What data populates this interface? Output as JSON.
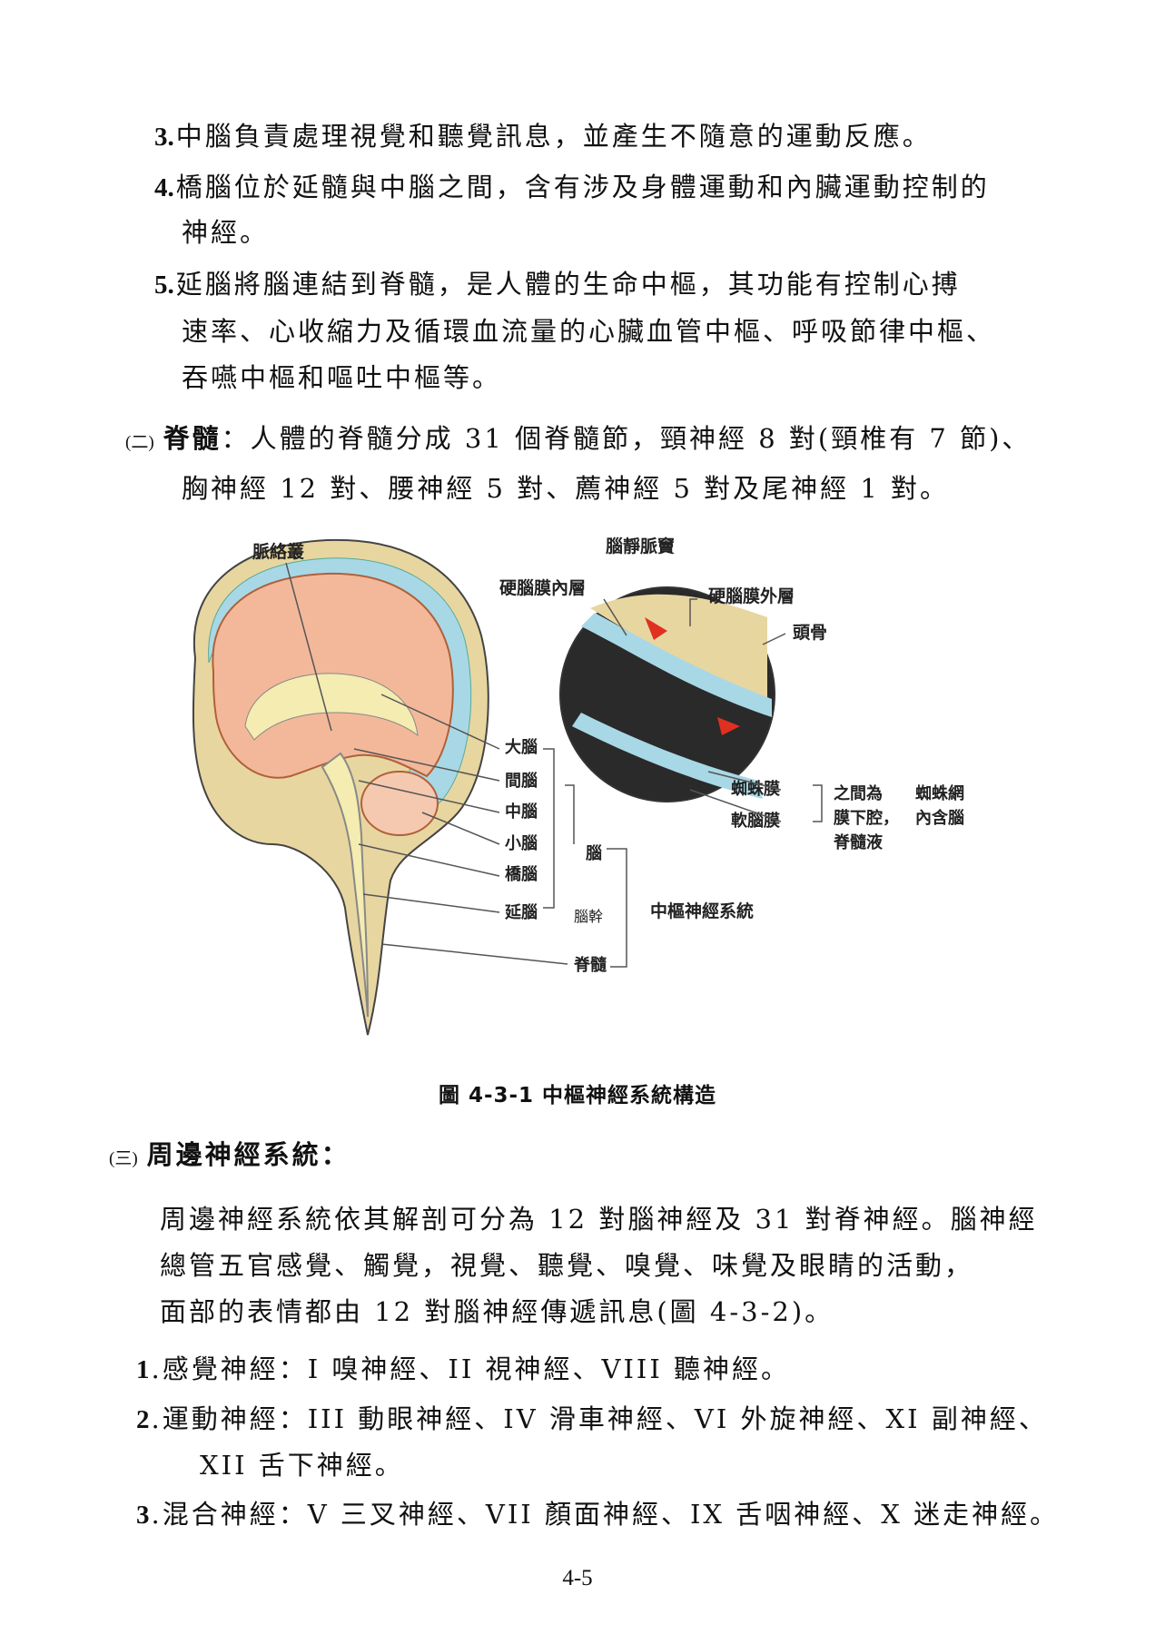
{
  "items": {
    "i3": {
      "num": "3.",
      "text": "中腦負責處理視覺和聽覺訊息，並產生不隨意的運動反應。"
    },
    "i4": {
      "num": "4.",
      "line1": "橋腦位於延髓與中腦之間，含有涉及身體運動和內臟運動控制的",
      "line2": "神經。"
    },
    "i5": {
      "num": "5.",
      "line1": "延腦將腦連結到脊髓，是人體的生命中樞，其功能有控制心搏",
      "line2": "速率、心收縮力及循環血流量的心臟血管中樞、呼吸節律中樞、",
      "line3": "吞嚥中樞和嘔吐中樞等。"
    }
  },
  "spinal": {
    "marker": "(二)",
    "title": "脊髓",
    "line1": "：人體的脊髓分成 31 個脊髓節，頸神經 8 對(頸椎有 7 節)、",
    "line2": "胸神經 12 對、腰神經 5 對、薦神經 5 對及尾神經 1 對。"
  },
  "figure": {
    "labels": {
      "choroid_plexus": "脈絡叢",
      "dural_sinus": "腦靜脈竇",
      "dura_inner": "硬腦膜內層",
      "dura_outer": "硬腦膜外層",
      "skull": "頭骨",
      "cerebrum": "大腦",
      "diencephalon": "間腦",
      "midbrain": "中腦",
      "cerebellum": "小腦",
      "pons": "橋腦",
      "medulla": "延腦",
      "brain": "腦",
      "brainstem": "腦幹",
      "spinal_cord": "脊髓",
      "cns": "中樞神經系統",
      "arachnoid": "蜘蛛膜",
      "pia": "軟腦膜",
      "between1": "之間為",
      "between2": "膜下腔，",
      "between3": "脊髓液",
      "web1": "蜘蛛網",
      "web2": "內含腦"
    },
    "caption": "圖 4-3-1  中樞神經系統構造"
  },
  "peripheral": {
    "marker": "(三)",
    "title": "周邊神經系統：",
    "para1": "周邊神經系統依其解剖可分為 12 對腦神經及 31 對脊神經。腦神經",
    "para2": "總管五官感覺、觸覺，視覺、聽覺、嗅覺、味覺及眼睛的活動，",
    "para3": "面部的表情都由 12 對腦神經傳遞訊息(圖 4-3-2)。",
    "n1": {
      "num": "1",
      "text": ".感覺神經：I 嗅神經、II 視神經、VIII 聽神經。"
    },
    "n2": {
      "num": "2",
      "text": ".運動神經：III 動眼神經、IV 滑車神經、VI 外旋神經、XI 副神經、",
      "cont": "XII 舌下神經。"
    },
    "n3": {
      "num": "3",
      "text": ".混合神經：V 三叉神經、VII 顏面神經、IX 舌咽神經、X 迷走神經。"
    }
  },
  "page_number": "4-5"
}
